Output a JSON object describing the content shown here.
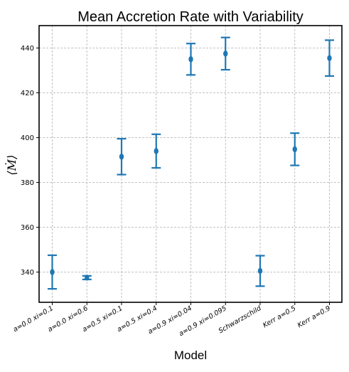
{
  "chart_data": {
    "type": "errorbar",
    "title": "Mean Accretion Rate with Variability",
    "xlabel": "Model",
    "ylabel": "⟨Ṁ⟩",
    "categories": [
      "a=0.0 xi=0.1",
      "a=0.0 xi=0.6",
      "a=0.5 xi=0.1",
      "a=0.5 xi=0.4",
      "a=0.9 xi=0.04",
      "a=0.9 xi=0.095",
      "Schwarzschild",
      "Kerr a=0.5",
      "Kerr a=0.9"
    ],
    "values": [
      340.0,
      337.5,
      391.5,
      394.0,
      435.0,
      437.5,
      340.5,
      394.8,
      435.5
    ],
    "errors": [
      7.5,
      0.8,
      8.0,
      7.5,
      7.0,
      7.2,
      6.8,
      7.2,
      8.0
    ],
    "ylim": [
      326.5,
      450
    ],
    "yticks": [
      340,
      360,
      380,
      400,
      420,
      440
    ],
    "grid": true,
    "color": "#1f77b4"
  }
}
